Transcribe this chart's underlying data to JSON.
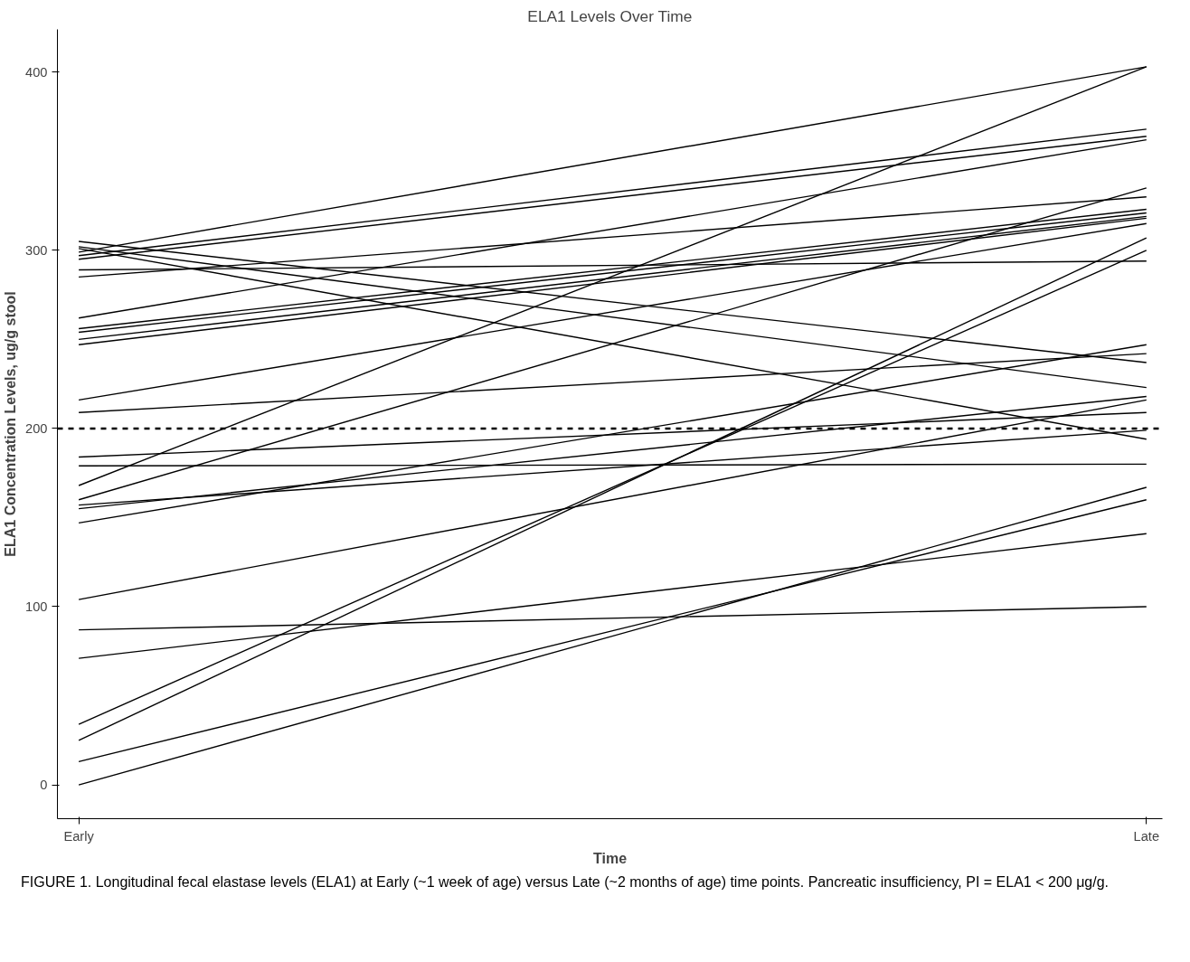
{
  "chart_data": {
    "type": "line",
    "title": "ELA1 Levels Over Time",
    "xlabel": "Time",
    "ylabel": "ELA1 Concentration Levels, ug/g stool",
    "categories": [
      "Early",
      "Late"
    ],
    "series": [
      {
        "color": "#000000",
        "values": [
          0,
          167
        ]
      },
      {
        "color": "#000000",
        "values": [
          13,
          160
        ]
      },
      {
        "color": "#000000",
        "values": [
          25,
          307
        ]
      },
      {
        "color": "#000000",
        "values": [
          34,
          300
        ]
      },
      {
        "color": "#000000",
        "values": [
          71,
          141
        ]
      },
      {
        "color": "#000000",
        "values": [
          87,
          100
        ]
      },
      {
        "color": "#000000",
        "values": [
          104,
          216
        ]
      },
      {
        "color": "#000000",
        "values": [
          147,
          247
        ]
      },
      {
        "color": "#000000",
        "values": [
          155,
          218
        ]
      },
      {
        "color": "#000000",
        "values": [
          157,
          199
        ]
      },
      {
        "color": "#000000",
        "values": [
          160,
          335
        ]
      },
      {
        "color": "#000000",
        "values": [
          168,
          403
        ]
      },
      {
        "color": "#000000",
        "values": [
          179,
          180
        ]
      },
      {
        "color": "#000000",
        "values": [
          184,
          209
        ]
      },
      {
        "color": "#000000",
        "values": [
          209,
          242
        ]
      },
      {
        "color": "#000000",
        "values": [
          216,
          315
        ]
      },
      {
        "color": "#000000",
        "values": [
          247,
          318
        ]
      },
      {
        "color": "#000000",
        "values": [
          250,
          319
        ]
      },
      {
        "color": "#000000",
        "values": [
          254,
          321
        ]
      },
      {
        "color": "#000000",
        "values": [
          256,
          323
        ]
      },
      {
        "color": "#000000",
        "values": [
          262,
          362
        ]
      },
      {
        "color": "#000000",
        "values": [
          285,
          330
        ]
      },
      {
        "color": "#000000",
        "values": [
          289,
          294
        ]
      },
      {
        "color": "#000000",
        "values": [
          295,
          364
        ]
      },
      {
        "color": "#000000",
        "values": [
          297,
          368
        ]
      },
      {
        "color": "#000000",
        "values": [
          299,
          403
        ]
      },
      {
        "color": "#000000",
        "values": [
          301,
          194
        ]
      },
      {
        "color": "#000000",
        "values": [
          302,
          223
        ]
      },
      {
        "color": "#000000",
        "values": [
          305,
          237
        ]
      }
    ],
    "ylim": [
      -19,
      424
    ],
    "yticks": [
      0,
      100,
      200,
      300,
      400
    ],
    "grid": false,
    "marker": "none",
    "line_style": "solid",
    "ref_lines": [
      {
        "axis": "y",
        "value": 200,
        "label": null,
        "color": "#000000",
        "line_style": "dashed"
      }
    ],
    "annotations": [
      "FIGURE 1. Longitudinal fecal elastase levels (ELA1) at Early (~1 week of age) versus Late (~2 months of age) time points. Pancreatic insufficiency, PI = ELA1 < 200 μg/g."
    ]
  }
}
